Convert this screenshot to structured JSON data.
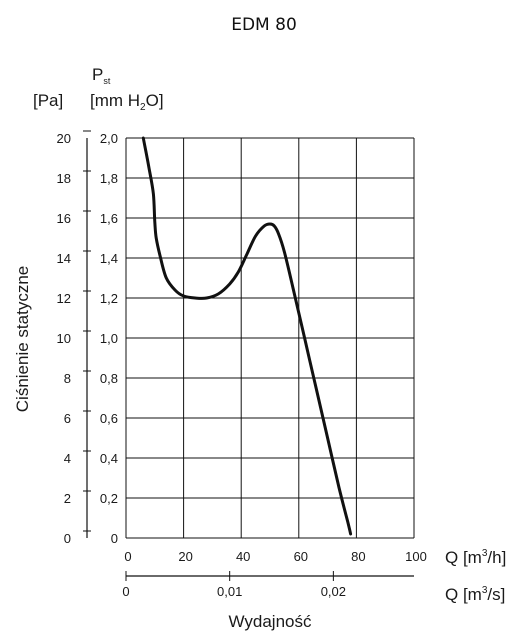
{
  "chart_data": {
    "type": "line",
    "title": "EDM 80",
    "ylabel": "Ciśnienie statyczne",
    "xlabel": "Wydajność",
    "pressure_symbol": "P",
    "pressure_subscript": "st",
    "y_unit_pa": "[Pa]",
    "y_unit_mmh2o_prefix": "[mm H",
    "y_unit_mmh2o_sub": "2",
    "y_unit_mmh2o_suffix": "O]",
    "x_unit_m3h_prefix": "Q [m",
    "x_unit_m3h_sup": "3",
    "x_unit_m3h_suffix": "/h]",
    "x_unit_m3s_prefix": "Q [m",
    "x_unit_m3s_sup": "3",
    "x_unit_m3s_suffix": "/s]",
    "xlim": [
      0,
      100
    ],
    "ylim": [
      0,
      2.0
    ],
    "x_ticks_m3h": [
      "0",
      "20",
      "40",
      "60",
      "80",
      "100"
    ],
    "x_ticks_m3h_values": [
      0,
      20,
      40,
      60,
      80,
      100
    ],
    "x_ticks_m3s": [
      "0",
      "0,01",
      "0,02"
    ],
    "x_ticks_m3s_values": [
      0,
      0.01,
      0.02
    ],
    "y_ticks_mmh2o": [
      "0",
      "0,2",
      "0,4",
      "0,6",
      "0,8",
      "1,0",
      "1,2",
      "1,4",
      "1,6",
      "1,8",
      "2,0"
    ],
    "y_ticks_mmh2o_values": [
      0,
      0.2,
      0.4,
      0.6,
      0.8,
      1.0,
      1.2,
      1.4,
      1.6,
      1.8,
      2.0
    ],
    "y_ticks_pa": [
      "0",
      "2",
      "4",
      "6",
      "8",
      "10",
      "12",
      "14",
      "16",
      "18",
      "20"
    ],
    "y_ticks_pa_values": [
      0,
      2,
      4,
      6,
      8,
      10,
      12,
      14,
      16,
      18,
      20
    ],
    "grid": true,
    "series": [
      {
        "x": [
          6,
          8,
          9.5,
          10,
          10.5,
          12,
          14,
          17,
          20,
          24,
          28,
          32,
          36,
          39,
          42,
          45,
          48,
          50,
          51.5,
          53,
          55,
          58,
          62,
          66,
          70,
          74,
          77,
          78
        ],
        "y": [
          2.0,
          1.85,
          1.72,
          1.58,
          1.5,
          1.4,
          1.3,
          1.24,
          1.21,
          1.2,
          1.2,
          1.22,
          1.27,
          1.33,
          1.42,
          1.51,
          1.56,
          1.57,
          1.56,
          1.52,
          1.43,
          1.25,
          1.0,
          0.75,
          0.5,
          0.25,
          0.08,
          0.02
        ],
        "color": "#111111"
      }
    ]
  }
}
